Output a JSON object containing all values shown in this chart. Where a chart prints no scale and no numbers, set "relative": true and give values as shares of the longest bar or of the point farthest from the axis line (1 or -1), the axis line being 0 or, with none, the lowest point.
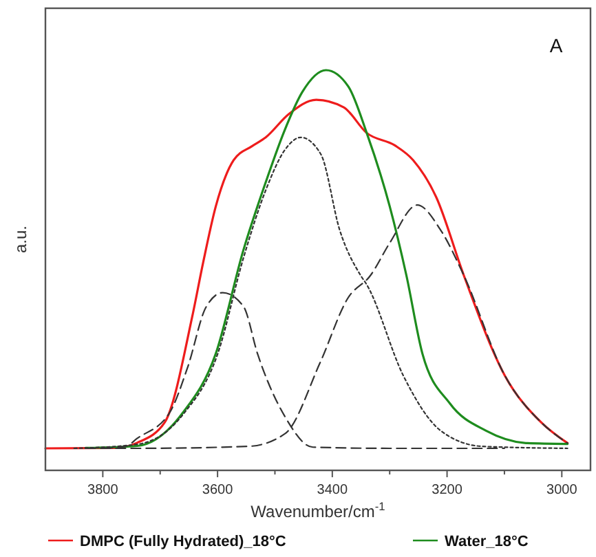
{
  "chart_data": {
    "type": "line",
    "relative": true,
    "xlabel": "Wavenumber/cm$^{-1}$",
    "ylabel": "a.u.",
    "annotations": [
      "A"
    ],
    "xlim": [
      3900,
      2950
    ],
    "xticks": [
      3800,
      {
        "value": 3700,
        "label": null
      },
      3600,
      {
        "value": 3500,
        "label": null
      },
      3400,
      {
        "value": 3300,
        "label": null
      },
      3200,
      {
        "value": 3100,
        "label": null
      },
      3000
    ],
    "legend": "bottom",
    "grid": false,
    "series": [
      {
        "name": "DMPC (Fully Hydrated)_18°C",
        "color": "#ee1c1c",
        "line_style": "solid",
        "x": [
          3900,
          3776,
          3740,
          3692,
          3644,
          3625,
          3603,
          3572,
          3540,
          3516,
          3476,
          3428,
          3380,
          3340,
          3291,
          3259,
          3219,
          3171,
          3099,
          3036,
          2990
        ],
        "values": [
          0.055,
          0.056,
          0.069,
          0.12,
          0.385,
          0.52,
          0.66,
          0.775,
          0.81,
          0.832,
          0.89,
          0.926,
          0.907,
          0.843,
          0.812,
          0.775,
          0.683,
          0.488,
          0.236,
          0.12,
          0.068
        ]
      },
      {
        "name": "Water_18°C",
        "color": "#1e8c1e",
        "line_style": "solid",
        "x": [
          3830,
          3740,
          3661,
          3603,
          3555,
          3516,
          3483,
          3452,
          3411,
          3372,
          3340,
          3300,
          3271,
          3243,
          3195,
          3132,
          3060,
          2990
        ],
        "values": [
          0.056,
          0.061,
          0.143,
          0.292,
          0.55,
          0.72,
          0.85,
          0.946,
          1.0,
          0.959,
          0.843,
          0.66,
          0.488,
          0.292,
          0.167,
          0.099,
          0.068,
          0.066
        ]
      },
      {
        "color": "#333333",
        "line_style": "dashed",
        "x": [
          3800,
          3760,
          3740,
          3684,
          3652,
          3620,
          3591,
          3555,
          3530,
          3482,
          3434,
          3300,
          3100
        ],
        "values": [
          0.055,
          0.06,
          0.08,
          0.143,
          0.258,
          0.408,
          0.444,
          0.41,
          0.29,
          0.133,
          0.058,
          0.055,
          0.055
        ]
      },
      {
        "color": "#333333",
        "line_style": "dotted",
        "x": [
          3850,
          3740,
          3660,
          3600,
          3555,
          3516,
          3483,
          3455,
          3420,
          3387,
          3351,
          3340,
          3276,
          3211,
          3139,
          2990
        ],
        "values": [
          0.055,
          0.065,
          0.14,
          0.29,
          0.53,
          0.7,
          0.8,
          0.832,
          0.79,
          0.6,
          0.488,
          0.464,
          0.236,
          0.099,
          0.06,
          0.055
        ]
      },
      {
        "color": "#333333",
        "line_style": "dashed",
        "x": [
          3830,
          3740,
          3546,
          3482,
          3421,
          3373,
          3333,
          3300,
          3252,
          3211,
          3171,
          3099,
          3036,
          2990
        ],
        "values": [
          0.055,
          0.055,
          0.06,
          0.092,
          0.27,
          0.43,
          0.488,
          0.568,
          0.663,
          0.6,
          0.488,
          0.236,
          0.12,
          0.068
        ]
      }
    ]
  }
}
